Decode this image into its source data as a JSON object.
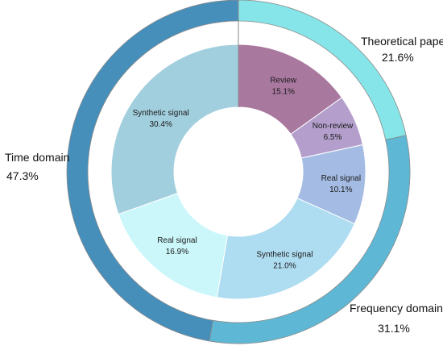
{
  "chart_data": {
    "type": "pie",
    "variant": "nested-donut",
    "title": "",
    "outer_ring": [
      {
        "label": "Theoretical paper",
        "value": 21.6,
        "display": "21.6%",
        "color": "#86E5E8"
      },
      {
        "label": "Frequency domain",
        "value": 31.1,
        "display": "31.1%",
        "color": "#5EB8D5"
      },
      {
        "label": "Time domain",
        "value": 47.3,
        "display": "47.3%",
        "color": "#468FBB"
      }
    ],
    "inner_ring": [
      {
        "label": "Review",
        "value": 15.1,
        "display": "15.1%",
        "parent": "Theoretical paper",
        "color": "#A9789F"
      },
      {
        "label": "Non-review",
        "value": 6.5,
        "display": "6.5%",
        "parent": "Theoretical paper",
        "color": "#B39ECC"
      },
      {
        "label": "Real signal",
        "value": 10.1,
        "display": "10.1%",
        "parent": "Frequency domain",
        "color": "#A4BCE3"
      },
      {
        "label": "Synthetic signal",
        "value": 21.0,
        "display": "21.0%",
        "parent": "Frequency domain",
        "color": "#AEDCF0"
      },
      {
        "label": "Real signal",
        "value": 16.9,
        "display": "16.9%",
        "parent": "Time domain",
        "color": "#CBF7FA"
      },
      {
        "label": "Synthetic signal",
        "value": 30.4,
        "display": "30.4%",
        "parent": "Time domain",
        "color": "#A2CFDE"
      }
    ],
    "start_angle": "top",
    "direction": "clockwise"
  }
}
